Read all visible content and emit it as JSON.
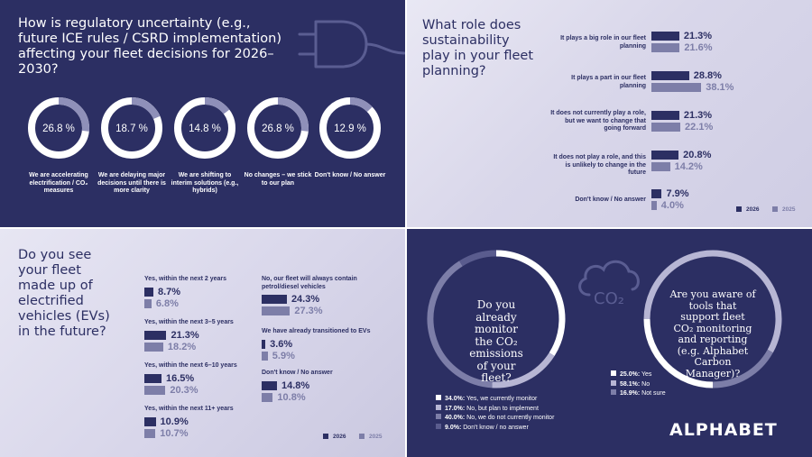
{
  "colors": {
    "navy": "#2c2f63",
    "lavender": "#7d7ea8",
    "light_lavender": "#b7b6d4",
    "ring": "#8f90b9",
    "white": "#ffffff"
  },
  "q1": {
    "title": "How is regulatory uncertainty (e.g., future ICE rules / CSRD implementation) affecting your fleet decisions for 2026–2030?",
    "icon": "ev-plug-icon"
  },
  "q2": {
    "title": "What role does sustainability play in your fleet planning?",
    "legend": {
      "a": "2026",
      "b": "2025"
    }
  },
  "q3": {
    "title": "Do you see your fleet made up of electrified vehicles (EVs) in the future?",
    "legend": {
      "a": "2026",
      "b": "2025"
    }
  },
  "q4": {
    "icon": "co2-cloud-icon",
    "icon_text": "CO₂",
    "logo": "ALPHABET"
  },
  "chart_data": [
    {
      "type": "pie",
      "categories": [
        "We are accelerating electrification / CO₂ measures",
        "We are delaying major decisions until there is more clarity",
        "We are shifting to interim solutions (e.g., hybrids)",
        "No changes – we stick to our plan",
        "Don't know / No answer"
      ],
      "values": [
        26.8,
        18.7,
        14.8,
        26.8,
        12.9
      ],
      "labels": [
        "26.8 %",
        "18.7 %",
        "14.8 %",
        "26.8 %",
        "12.9 %"
      ]
    },
    {
      "type": "bar",
      "categories": [
        "It plays a big role in our fleet planning",
        "It plays a part in our fleet planning",
        "It does not currently play a role, but we want to change that going forward",
        "It does not play a role, and this is unlikely to change in the future",
        "Don't know / No answer"
      ],
      "series": [
        {
          "name": "2026",
          "values": [
            21.3,
            28.8,
            21.3,
            20.8,
            7.9
          ],
          "labels": [
            "21.3%",
            "28.8%",
            "21.3%",
            "20.8%",
            "7.9%"
          ]
        },
        {
          "name": "2025",
          "values": [
            21.6,
            38.1,
            22.1,
            14.2,
            4.0
          ],
          "labels": [
            "21.6%",
            "38.1%",
            "22.1%",
            "14.2%",
            "4.0%"
          ]
        }
      ]
    },
    {
      "type": "bar",
      "categories": [
        "Yes, within the next 2 years",
        "Yes, within the next 3–5 years",
        "Yes, within the next 6–10 years",
        "Yes, within the next 11+ years",
        "No, our fleet will always contain petrol/diesel vehicles",
        "We have already transitioned to EVs",
        "Don't know / No answer"
      ],
      "series": [
        {
          "name": "2026",
          "values": [
            8.7,
            21.3,
            16.5,
            10.9,
            24.3,
            3.6,
            14.8
          ],
          "labels": [
            "8.7%",
            "21.3%",
            "16.5%",
            "10.9%",
            "24.3%",
            "3.6%",
            "14.8%"
          ]
        },
        {
          "name": "2025",
          "values": [
            6.8,
            18.2,
            20.3,
            10.7,
            27.3,
            5.9,
            10.8
          ],
          "labels": [
            "6.8%",
            "18.2%",
            "20.3%",
            "10.7%",
            "27.3%",
            "5.9%",
            "10.8%"
          ]
        }
      ]
    },
    {
      "type": "pie",
      "title": "Do you already monitor the CO₂ emissions of your fleet?",
      "categories": [
        "Yes, we currently monitor",
        "No, but plan to implement",
        "No, we do not currently monitor",
        "Don't know / no answer"
      ],
      "values": [
        34.0,
        17.0,
        40.0,
        9.0
      ],
      "labels": [
        "34.0%:",
        "17.0%:",
        "40.0%:",
        "9.0%:"
      ],
      "colors": [
        "#ffffff",
        "#b7b6d4",
        "#7d7ea8",
        "#5a5c8e"
      ]
    },
    {
      "type": "pie",
      "title": "Are you aware of tools that support fleet CO₂ monitoring and reporting (e.g. Alphabet Carbon Manager)?",
      "categories": [
        "Yes",
        "No",
        "Not sure"
      ],
      "values": [
        25.0,
        58.1,
        16.9
      ],
      "labels": [
        "25.0%:",
        "58.1%:",
        "16.9%:"
      ],
      "colors": [
        "#ffffff",
        "#b7b6d4",
        "#7d7ea8"
      ]
    }
  ]
}
